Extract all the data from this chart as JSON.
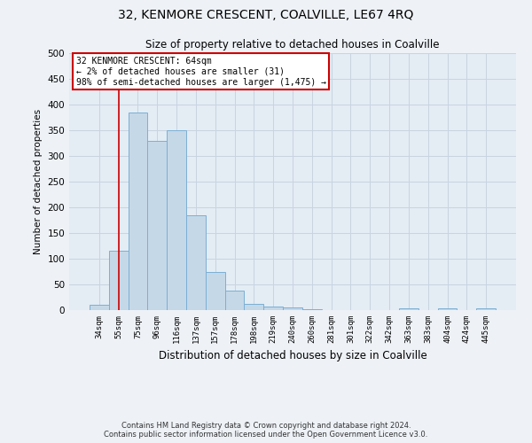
{
  "title1": "32, KENMORE CRESCENT, COALVILLE, LE67 4RQ",
  "title2": "Size of property relative to detached houses in Coalville",
  "xlabel": "Distribution of detached houses by size in Coalville",
  "ylabel": "Number of detached properties",
  "categories": [
    "34sqm",
    "55sqm",
    "75sqm",
    "96sqm",
    "116sqm",
    "137sqm",
    "157sqm",
    "178sqm",
    "198sqm",
    "219sqm",
    "240sqm",
    "260sqm",
    "281sqm",
    "301sqm",
    "322sqm",
    "342sqm",
    "363sqm",
    "383sqm",
    "404sqm",
    "424sqm",
    "445sqm"
  ],
  "values": [
    10,
    115,
    385,
    330,
    350,
    185,
    75,
    38,
    12,
    7,
    6,
    1,
    0,
    0,
    0,
    0,
    3,
    0,
    3,
    0,
    3
  ],
  "bar_color": "#c5d8e8",
  "bar_edge_color": "#7bafd4",
  "grid_color": "#c8d4e0",
  "vline_x": 1,
  "vline_color": "#cc0000",
  "annotation_text": "32 KENMORE CRESCENT: 64sqm\n← 2% of detached houses are smaller (31)\n98% of semi-detached houses are larger (1,475) →",
  "annotation_box_color": "#ffffff",
  "annotation_border_color": "#cc0000",
  "ylim": [
    0,
    500
  ],
  "yticks": [
    0,
    50,
    100,
    150,
    200,
    250,
    300,
    350,
    400,
    450,
    500
  ],
  "footer1": "Contains HM Land Registry data © Crown copyright and database right 2024.",
  "footer2": "Contains public sector information licensed under the Open Government Licence v3.0.",
  "bg_color": "#eef2f7",
  "plot_bg_color": "#e4ecf4"
}
